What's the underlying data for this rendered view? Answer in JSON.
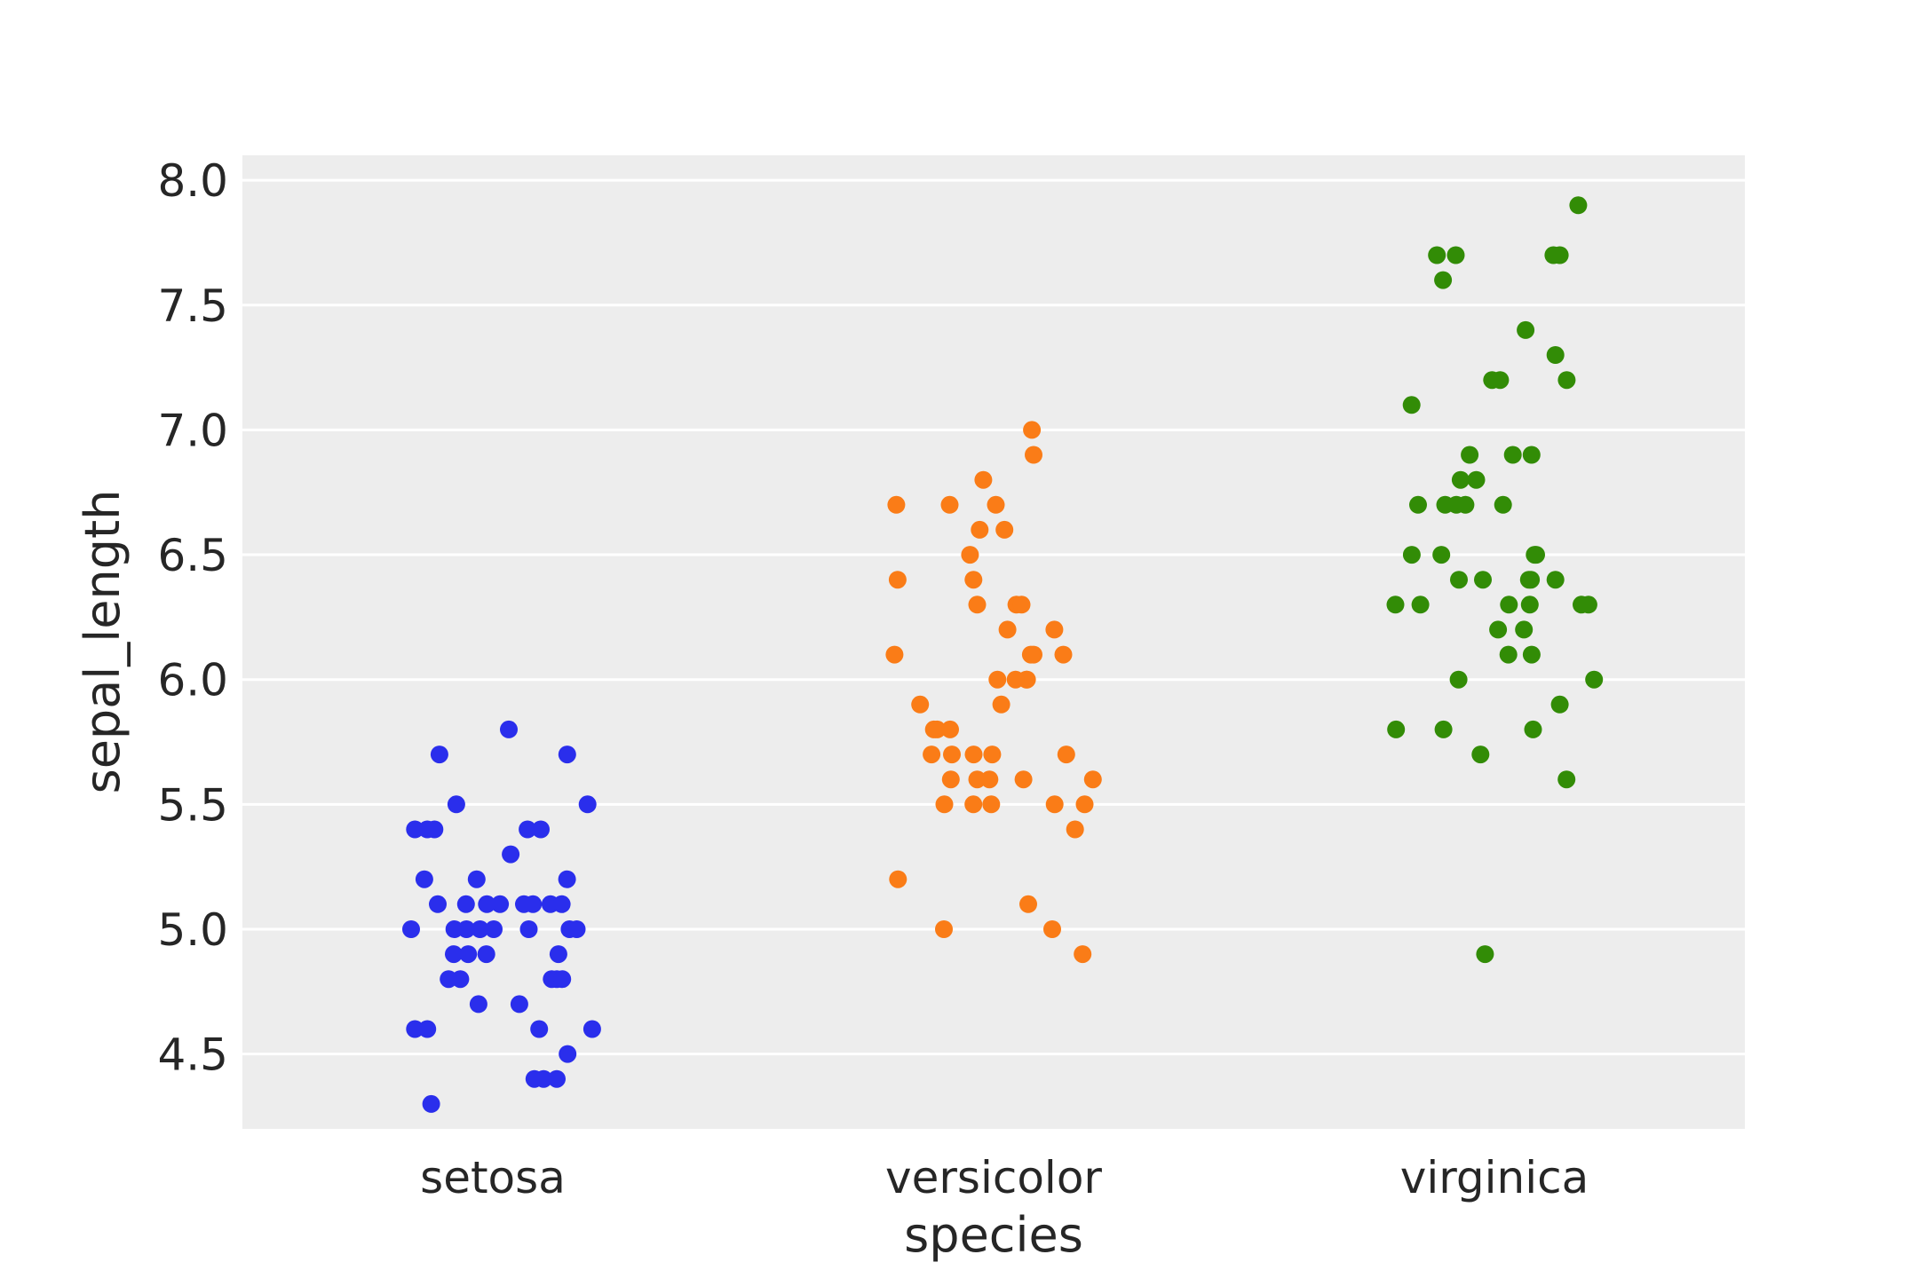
{
  "chart_data": {
    "type": "scatter",
    "subtype": "strip",
    "title": "",
    "xlabel": "species",
    "ylabel": "sepal_length",
    "categories": [
      "setosa",
      "versicolor",
      "virginica"
    ],
    "ylim": [
      4.2,
      8.1
    ],
    "yticks": [
      "4.5",
      "5.0",
      "5.5",
      "6.0",
      "6.5",
      "7.0",
      "7.5",
      "8.0"
    ],
    "grid": true,
    "background": "#ededed",
    "series": [
      {
        "category": "setosa",
        "color": "#2a2eec",
        "values": [
          5.1,
          4.9,
          4.7,
          4.6,
          5.0,
          5.4,
          4.6,
          5.0,
          4.4,
          4.9,
          5.4,
          4.8,
          4.8,
          4.3,
          5.8,
          5.7,
          5.4,
          5.1,
          5.7,
          5.1,
          5.4,
          5.1,
          4.6,
          5.1,
          4.8,
          5.0,
          5.0,
          5.2,
          5.2,
          4.7,
          4.8,
          5.4,
          5.2,
          5.5,
          4.9,
          5.0,
          5.5,
          4.9,
          4.4,
          5.1,
          5.0,
          4.5,
          4.4,
          5.0,
          5.1,
          4.8,
          5.1,
          4.6,
          5.3,
          5.0
        ]
      },
      {
        "category": "versicolor",
        "color": "#fa7c17",
        "values": [
          7.0,
          6.4,
          6.9,
          5.5,
          6.5,
          5.7,
          6.3,
          4.9,
          6.6,
          5.2,
          5.0,
          5.9,
          6.0,
          6.1,
          5.6,
          6.7,
          5.6,
          5.8,
          6.2,
          5.6,
          5.9,
          6.1,
          6.3,
          6.1,
          6.4,
          6.6,
          6.8,
          6.7,
          6.0,
          5.7,
          5.5,
          5.5,
          5.8,
          6.0,
          5.4,
          6.0,
          6.7,
          6.3,
          5.6,
          5.5,
          5.5,
          6.1,
          5.8,
          5.0,
          5.6,
          5.7,
          5.7,
          6.2,
          5.1,
          5.7
        ]
      },
      {
        "category": "virginica",
        "color": "#328c06",
        "values": [
          6.3,
          5.8,
          7.1,
          6.3,
          6.5,
          7.6,
          4.9,
          7.3,
          6.7,
          7.2,
          6.5,
          6.4,
          6.8,
          5.7,
          5.8,
          6.4,
          6.5,
          7.7,
          7.7,
          6.0,
          6.9,
          5.6,
          7.7,
          6.3,
          6.7,
          7.2,
          6.2,
          6.1,
          6.4,
          7.2,
          7.4,
          7.9,
          6.4,
          6.3,
          6.1,
          7.7,
          6.3,
          6.4,
          6.0,
          6.9,
          6.7,
          6.9,
          5.8,
          6.8,
          6.7,
          6.7,
          6.3,
          6.5,
          6.2,
          5.9
        ]
      }
    ]
  }
}
